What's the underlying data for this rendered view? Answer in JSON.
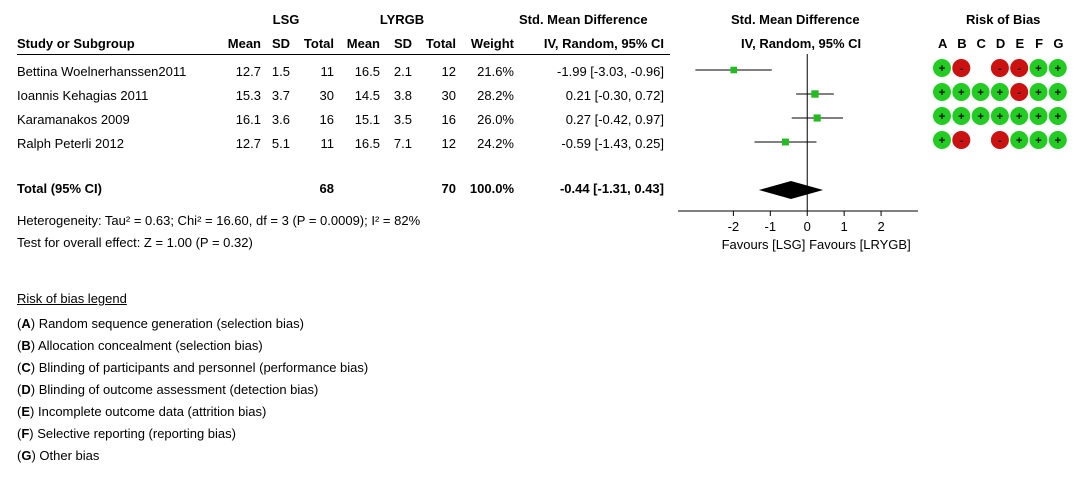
{
  "header": {
    "group1": "LSG",
    "group2": "LYRGB",
    "smd_title": "Std. Mean Difference",
    "plot_title": "Std. Mean Difference",
    "rob_title": "Risk of Bias",
    "col_study": "Study or Subgroup",
    "col_mean1": "Mean",
    "col_sd1": "SD",
    "col_total1": "Total",
    "col_mean2": "Mean",
    "col_sd2": "SD",
    "col_total2": "Total",
    "col_weight": "Weight",
    "col_ci": "IV, Random, 95% CI",
    "plot_sub": "IV, Random, 95% CI",
    "rob_letters": [
      "A",
      "B",
      "C",
      "D",
      "E",
      "F",
      "G"
    ]
  },
  "studies": [
    {
      "name": "Bettina Woelnerhanssen2011",
      "mean1": "12.7",
      "sd1": "1.5",
      "total1": "11",
      "mean2": "16.5",
      "sd2": "2.1",
      "total2": "12",
      "weight": "21.6%",
      "ci": "-1.99 [-3.03, -0.96]"
    },
    {
      "name": "Ioannis Kehagias 2011",
      "mean1": "15.3",
      "sd1": "3.7",
      "total1": "30",
      "mean2": "14.5",
      "sd2": "3.8",
      "total2": "30",
      "weight": "28.2%",
      "ci": "0.21 [-0.30, 0.72]"
    },
    {
      "name": "Karamanakos 2009",
      "mean1": "16.1",
      "sd1": "3.6",
      "total1": "16",
      "mean2": "15.1",
      "sd2": "3.5",
      "total2": "16",
      "weight": "26.0%",
      "ci": "0.27 [-0.42, 0.97]"
    },
    {
      "name": "Ralph Peterli 2012",
      "mean1": "12.7",
      "sd1": "5.1",
      "total1": "11",
      "mean2": "16.5",
      "sd2": "7.1",
      "total2": "12",
      "weight": "24.2%",
      "ci": "-0.59 [-1.43, 0.25]"
    }
  ],
  "total": {
    "label": "Total (95% CI)",
    "total1": "68",
    "total2": "70",
    "weight": "100.0%",
    "ci": "-0.44 [-1.31, 0.43]"
  },
  "heterogeneity": "Heterogeneity: Tau² = 0.63; Chi² = 16.60, df = 3 (P = 0.0009); I² = 82%",
  "overall_effect": "Test for overall effect: Z = 1.00 (P = 0.32)",
  "legend": {
    "title": "Risk of bias legend",
    "items": [
      {
        "letter": "A",
        "text": " Random sequence generation (selection bias)"
      },
      {
        "letter": "B",
        "text": " Allocation concealment (selection bias)"
      },
      {
        "letter": "C",
        "text": " Blinding of participants and personnel (performance bias)"
      },
      {
        "letter": "D",
        "text": " Blinding of outcome assessment (detection bias)"
      },
      {
        "letter": "E",
        "text": " Incomplete outcome data (attrition bias)"
      },
      {
        "letter": "F",
        "text": " Selective reporting (reporting bias)"
      },
      {
        "letter": "G",
        "text": " Other bias"
      }
    ]
  },
  "chart_data": {
    "type": "scatter",
    "subtype": "forest-plot",
    "title": "Std. Mean Difference",
    "subtitle": "IV, Random, 95% CI",
    "xlim": [
      -3.5,
      3
    ],
    "xticks": [
      "-2",
      "-1",
      "0",
      "1",
      "2"
    ],
    "xtick_values": [
      -2,
      -1,
      0,
      1,
      2
    ],
    "xlabel_left": "Favours [LSG]",
    "xlabel_right": "Favours [LRYGB]",
    "series": [
      {
        "name": "Bettina Woelnerhanssen2011",
        "estimate": -1.99,
        "lower": -3.03,
        "upper": -0.96,
        "weight": 21.6
      },
      {
        "name": "Ioannis Kehagias 2011",
        "estimate": 0.21,
        "lower": -0.3,
        "upper": 0.72,
        "weight": 28.2
      },
      {
        "name": "Karamanakos 2009",
        "estimate": 0.27,
        "lower": -0.42,
        "upper": 0.97,
        "weight": 26.0
      },
      {
        "name": "Ralph Peterli 2012",
        "estimate": -0.59,
        "lower": -1.43,
        "upper": 0.25,
        "weight": 24.2
      }
    ],
    "pooled": {
      "estimate": -0.44,
      "lower": -1.31,
      "upper": 0.43
    },
    "marker_color": "#22bb22",
    "risk_of_bias": [
      [
        "+",
        "-",
        "",
        "-",
        "-",
        "+",
        "+"
      ],
      [
        "+",
        "+",
        "+",
        "+",
        "-",
        "+",
        "+"
      ],
      [
        "+",
        "+",
        "+",
        "+",
        "+",
        "+",
        "+"
      ],
      [
        "+",
        "-",
        "",
        "-",
        "+",
        "+",
        "+"
      ]
    ],
    "rob_colors": {
      "low": "#22cc22",
      "high": "#cc1111"
    }
  }
}
